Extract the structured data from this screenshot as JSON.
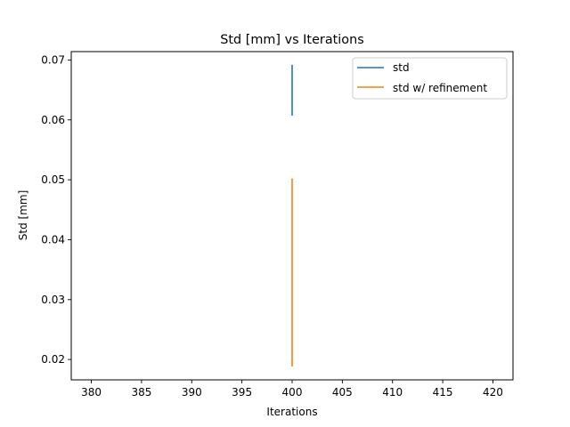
{
  "chart_data": {
    "type": "line",
    "title": "Std [mm] vs Iterations",
    "xlabel": "Iterations",
    "ylabel": "Std [mm]",
    "xlim": [
      378,
      422
    ],
    "ylim": [
      0.0166,
      0.0714
    ],
    "xticks": [
      380,
      385,
      390,
      395,
      400,
      405,
      410,
      415,
      420
    ],
    "yticks": [
      0.02,
      0.03,
      0.04,
      0.05,
      0.06,
      0.07
    ],
    "ytick_labels": [
      "0.02",
      "0.03",
      "0.04",
      "0.05",
      "0.06",
      "0.07"
    ],
    "grid": false,
    "legend_position": "top-right",
    "series": [
      {
        "name": "std",
        "color": "#1f77b4",
        "x": [
          400,
          400
        ],
        "y": [
          0.0607,
          0.0692
        ]
      },
      {
        "name": "std w/ refinement",
        "color": "#ff7f0e",
        "x": [
          400,
          400
        ],
        "y": [
          0.0188,
          0.0502
        ]
      }
    ]
  }
}
